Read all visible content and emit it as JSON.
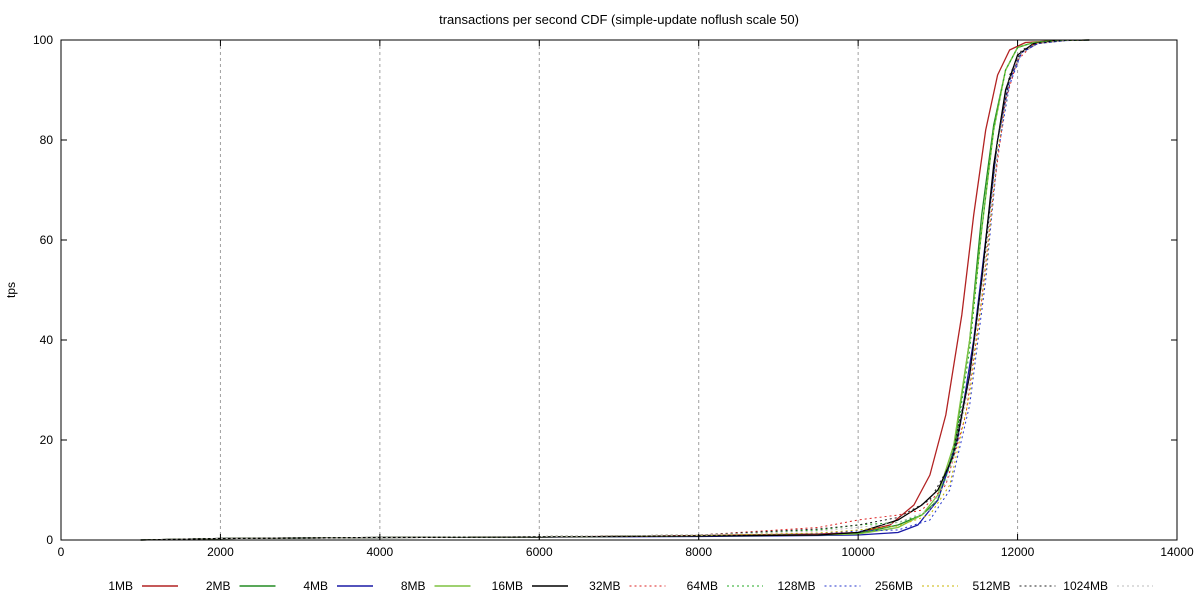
{
  "chart_data": {
    "type": "line",
    "title": "transactions per second CDF (simple-update noflush scale 50)",
    "xlabel": "",
    "ylabel": "tps",
    "xlim": [
      0,
      14000
    ],
    "ylim": [
      0,
      100
    ],
    "x_ticks": [
      "0",
      "2000",
      "4000",
      "6000",
      "8000",
      "10000",
      "12000",
      "14000"
    ],
    "y_ticks": [
      "0",
      "20",
      "40",
      "60",
      "80",
      "100"
    ],
    "grid": "vertical dashed",
    "legend_position": "bottom",
    "series": [
      {
        "name": "1MB",
        "color": "#b22222",
        "dash": "solid",
        "points": [
          [
            1000,
            0
          ],
          [
            2000,
            0.3
          ],
          [
            4000,
            0.5
          ],
          [
            6000,
            0.6
          ],
          [
            8000,
            0.9
          ],
          [
            9500,
            1.2
          ],
          [
            10000,
            1.5
          ],
          [
            10400,
            3
          ],
          [
            10700,
            7
          ],
          [
            10900,
            13
          ],
          [
            11100,
            25
          ],
          [
            11300,
            45
          ],
          [
            11450,
            65
          ],
          [
            11600,
            82
          ],
          [
            11750,
            93
          ],
          [
            11900,
            98
          ],
          [
            12100,
            99.5
          ],
          [
            12500,
            99.9
          ],
          [
            12900,
            100
          ]
        ]
      },
      {
        "name": "2MB",
        "color": "#228b22",
        "dash": "solid",
        "points": [
          [
            1000,
            0
          ],
          [
            2000,
            0.3
          ],
          [
            4000,
            0.5
          ],
          [
            6000,
            0.6
          ],
          [
            8000,
            0.8
          ],
          [
            9500,
            1.0
          ],
          [
            10000,
            1.3
          ],
          [
            10500,
            3
          ],
          [
            10800,
            5
          ],
          [
            11000,
            8
          ],
          [
            11200,
            18
          ],
          [
            11400,
            40
          ],
          [
            11550,
            65
          ],
          [
            11700,
            83
          ],
          [
            11850,
            94
          ],
          [
            12000,
            98.5
          ],
          [
            12200,
            99.5
          ],
          [
            12500,
            99.9
          ],
          [
            12900,
            100
          ]
        ]
      },
      {
        "name": "4MB",
        "color": "#1a1aa6",
        "dash": "solid",
        "points": [
          [
            1000,
            0
          ],
          [
            2000,
            0.3
          ],
          [
            4000,
            0.5
          ],
          [
            6000,
            0.6
          ],
          [
            8000,
            0.7
          ],
          [
            9500,
            0.9
          ],
          [
            10000,
            1.0
          ],
          [
            10500,
            1.5
          ],
          [
            10750,
            3
          ],
          [
            11000,
            8
          ],
          [
            11250,
            20
          ],
          [
            11450,
            40
          ],
          [
            11600,
            60
          ],
          [
            11750,
            80
          ],
          [
            11900,
            92
          ],
          [
            12050,
            97.5
          ],
          [
            12250,
            99.3
          ],
          [
            12600,
            99.9
          ],
          [
            12900,
            100
          ]
        ]
      },
      {
        "name": "8MB",
        "color": "#7fc241",
        "dash": "solid",
        "points": [
          [
            1000,
            0
          ],
          [
            2000,
            0.3
          ],
          [
            4000,
            0.5
          ],
          [
            6000,
            0.6
          ],
          [
            8000,
            0.8
          ],
          [
            9500,
            1.0
          ],
          [
            10000,
            1.2
          ],
          [
            10500,
            2.5
          ],
          [
            10800,
            5
          ],
          [
            11000,
            9
          ],
          [
            11200,
            19
          ],
          [
            11400,
            40
          ],
          [
            11550,
            62
          ],
          [
            11700,
            82
          ],
          [
            11850,
            94
          ],
          [
            12000,
            98.5
          ],
          [
            12200,
            99.5
          ],
          [
            12500,
            99.9
          ],
          [
            12900,
            100
          ]
        ]
      },
      {
        "name": "16MB",
        "color": "#000000",
        "dash": "solid",
        "points": [
          [
            1000,
            0
          ],
          [
            2000,
            0.3
          ],
          [
            4000,
            0.5
          ],
          [
            6000,
            0.6
          ],
          [
            8000,
            0.8
          ],
          [
            9500,
            1.0
          ],
          [
            10000,
            1.5
          ],
          [
            10500,
            4
          ],
          [
            10800,
            7
          ],
          [
            11000,
            10
          ],
          [
            11200,
            17
          ],
          [
            11400,
            33
          ],
          [
            11550,
            52
          ],
          [
            11700,
            75
          ],
          [
            11850,
            90
          ],
          [
            12000,
            97
          ],
          [
            12200,
            99.3
          ],
          [
            12500,
            99.9
          ],
          [
            12900,
            100
          ]
        ]
      },
      {
        "name": "32MB",
        "color": "#dd2222",
        "dash": "dotted",
        "points": [
          [
            1000,
            0
          ],
          [
            2000,
            0.3
          ],
          [
            4000,
            0.5
          ],
          [
            6000,
            0.7
          ],
          [
            8000,
            1.0
          ],
          [
            9500,
            2.5
          ],
          [
            10000,
            4
          ],
          [
            10500,
            5
          ],
          [
            10800,
            6
          ],
          [
            11100,
            11
          ],
          [
            11350,
            25
          ],
          [
            11550,
            48
          ],
          [
            11700,
            70
          ],
          [
            11850,
            88
          ],
          [
            12000,
            96
          ],
          [
            12200,
            99.2
          ],
          [
            12500,
            99.9
          ],
          [
            12900,
            100
          ]
        ]
      },
      {
        "name": "64MB",
        "color": "#22aa22",
        "dash": "dotted",
        "points": [
          [
            1000,
            0
          ],
          [
            2000,
            0.3
          ],
          [
            4000,
            0.5
          ],
          [
            6000,
            0.7
          ],
          [
            8000,
            1.0
          ],
          [
            9500,
            2.0
          ],
          [
            10000,
            3
          ],
          [
            10500,
            3.5
          ],
          [
            10800,
            5
          ],
          [
            11000,
            8
          ],
          [
            11200,
            17
          ],
          [
            11400,
            38
          ],
          [
            11550,
            62
          ],
          [
            11700,
            82
          ],
          [
            11850,
            94
          ],
          [
            12000,
            98.5
          ],
          [
            12200,
            99.5
          ],
          [
            12500,
            99.9
          ],
          [
            12900,
            100
          ]
        ]
      },
      {
        "name": "128MB",
        "color": "#2233cc",
        "dash": "dotted",
        "points": [
          [
            1000,
            0
          ],
          [
            2000,
            0.3
          ],
          [
            4000,
            0.5
          ],
          [
            6000,
            0.7
          ],
          [
            8000,
            0.9
          ],
          [
            9500,
            1.3
          ],
          [
            10000,
            1.8
          ],
          [
            10500,
            2
          ],
          [
            10900,
            4
          ],
          [
            11150,
            10
          ],
          [
            11400,
            27
          ],
          [
            11600,
            52
          ],
          [
            11750,
            77
          ],
          [
            11900,
            91
          ],
          [
            12050,
            97.5
          ],
          [
            12250,
            99.3
          ],
          [
            12600,
            99.9
          ],
          [
            12900,
            100
          ]
        ]
      },
      {
        "name": "256MB",
        "color": "#c8b400",
        "dash": "dotted",
        "points": [
          [
            1000,
            0
          ],
          [
            2000,
            0.3
          ],
          [
            4000,
            0.5
          ],
          [
            6000,
            0.7
          ],
          [
            8000,
            0.9
          ],
          [
            9500,
            1.4
          ],
          [
            10000,
            2.0
          ],
          [
            10500,
            2.8
          ],
          [
            10900,
            5
          ],
          [
            11150,
            11
          ],
          [
            11400,
            29
          ],
          [
            11600,
            54
          ],
          [
            11750,
            78
          ],
          [
            11900,
            92
          ],
          [
            12050,
            97.5
          ],
          [
            12250,
            99.3
          ],
          [
            12600,
            99.9
          ],
          [
            12900,
            100
          ]
        ]
      },
      {
        "name": "512MB",
        "color": "#222222",
        "dash": "dotted",
        "points": [
          [
            1000,
            0
          ],
          [
            2000,
            0.3
          ],
          [
            4000,
            0.5
          ],
          [
            6000,
            0.7
          ],
          [
            8000,
            1.0
          ],
          [
            9500,
            2.2
          ],
          [
            10000,
            3
          ],
          [
            10500,
            4.5
          ],
          [
            10900,
            8
          ],
          [
            11150,
            15
          ],
          [
            11400,
            33
          ],
          [
            11600,
            58
          ],
          [
            11750,
            80
          ],
          [
            11900,
            93
          ],
          [
            12050,
            98
          ],
          [
            12250,
            99.4
          ],
          [
            12600,
            99.9
          ],
          [
            12900,
            100
          ]
        ]
      },
      {
        "name": "1024MB",
        "color": "#bbbbbb",
        "dash": "dotted",
        "points": [
          [
            1000,
            0
          ],
          [
            2000,
            0.3
          ],
          [
            4000,
            0.5
          ],
          [
            6000,
            0.7
          ],
          [
            8000,
            1.0
          ],
          [
            9500,
            1.8
          ],
          [
            10000,
            2.5
          ],
          [
            10500,
            3.5
          ],
          [
            10900,
            6
          ],
          [
            11150,
            13
          ],
          [
            11400,
            31
          ],
          [
            11600,
            56
          ],
          [
            11750,
            79
          ],
          [
            11900,
            92
          ],
          [
            12050,
            97.5
          ],
          [
            12250,
            99.3
          ],
          [
            12600,
            99.9
          ],
          [
            12900,
            100
          ]
        ]
      }
    ]
  }
}
